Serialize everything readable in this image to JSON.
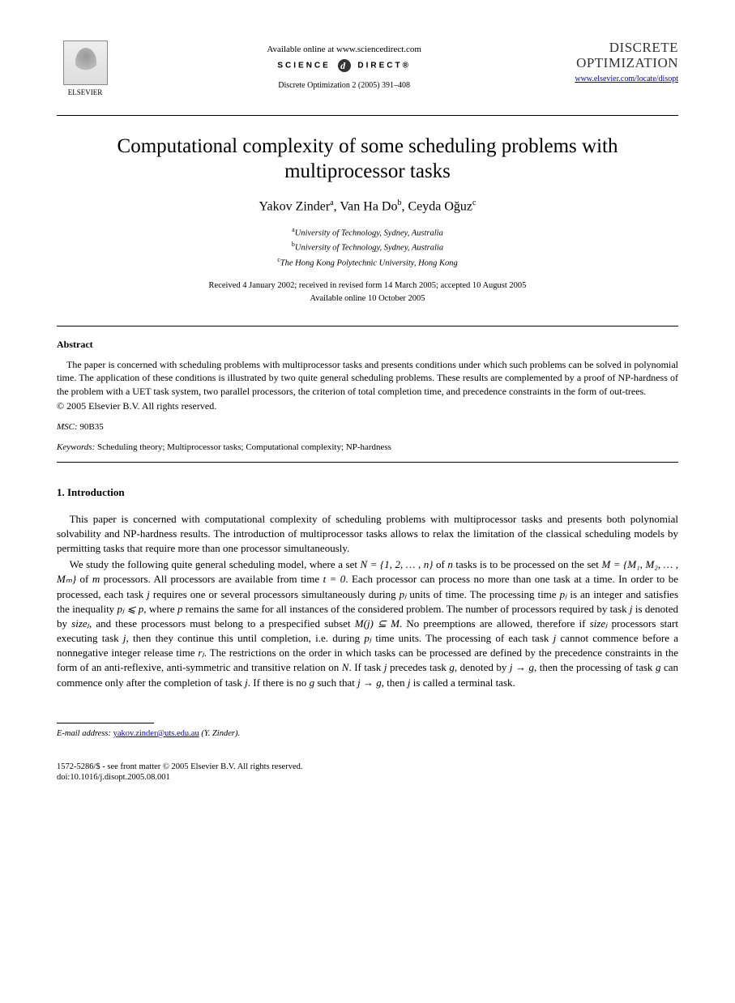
{
  "header": {
    "publisher_name": "ELSEVIER",
    "available_online": "Available online at www.sciencedirect.com",
    "science_direct_left": "SCIENCE",
    "science_direct_right": "DIRECT®",
    "journal_ref": "Discrete Optimization 2 (2005) 391–408",
    "journal_name_line1": "DISCRETE",
    "journal_name_line2": "OPTIMIZATION",
    "journal_link_text": "www.elsevier.com/locate/disopt"
  },
  "title": "Computational complexity of some scheduling problems with multiprocessor tasks",
  "authors": [
    {
      "name": "Yakov Zinder",
      "sup": "a"
    },
    {
      "name": "Van Ha Do",
      "sup": "b"
    },
    {
      "name": "Ceyda Oğuz",
      "sup": "c"
    }
  ],
  "affiliations": [
    {
      "sup": "a",
      "text": "University of Technology, Sydney, Australia"
    },
    {
      "sup": "b",
      "text": "University of Technology, Sydney, Australia"
    },
    {
      "sup": "c",
      "text": "The Hong Kong Polytechnic University, Hong Kong"
    }
  ],
  "dates": {
    "line1": "Received 4 January 2002; received in revised form 14 March 2005; accepted 10 August 2005",
    "line2": "Available online 10 October 2005"
  },
  "abstract": {
    "heading": "Abstract",
    "body": "The paper is concerned with scheduling problems with multiprocessor tasks and presents conditions under which such problems can be solved in polynomial time. The application of these conditions is illustrated by two quite general scheduling problems. These results are complemented by a proof of NP-hardness of the problem with a UET task system, two parallel processors, the criterion of total completion time, and precedence constraints in the form of out-trees.",
    "copyright": "© 2005 Elsevier B.V. All rights reserved."
  },
  "msc": {
    "label": "MSC:",
    "value": "90B35"
  },
  "keywords": {
    "label": "Keywords:",
    "value": "Scheduling theory; Multiprocessor tasks; Computational complexity; NP-hardness"
  },
  "section1": {
    "heading": "1.  Introduction",
    "para1": "This paper is concerned with computational complexity of scheduling problems with multiprocessor tasks and presents both polynomial solvability and NP-hardness results. The introduction of multiprocessor tasks allows to relax the limitation of the classical scheduling models by permitting tasks that require more than one processor simultaneously.",
    "para2_parts": {
      "t1": "We study the following quite general scheduling model, where a set ",
      "m1": "N = {1, 2, … , n}",
      "t2": " of ",
      "m2": "n",
      "t3": " tasks is to be processed on the set ",
      "m3": "M = {M₁, M₂, … , Mₘ}",
      "t4": " of ",
      "m4": "m",
      "t5": " processors. All processors are available from time ",
      "m5": "t = 0",
      "t6": ". Each processor can process no more than one task at a time. In order to be processed, each task ",
      "m6": "j",
      "t7": " requires one or several processors simultaneously during ",
      "m7": "pⱼ",
      "t8": " units of time. The processing time ",
      "m8": "pⱼ",
      "t9": " is an integer and satisfies the inequality ",
      "m9": "pⱼ ⩽ p",
      "t10": ", where ",
      "m10": "p",
      "t11": " remains the same for all instances of the considered problem. The number of processors required by task ",
      "m11": "j",
      "t12": " is denoted by ",
      "m12": "sizeⱼ",
      "t13": ", and these processors must belong to a prespecified subset ",
      "m13": "M(j) ⊆ M",
      "t14": ". No preemptions are allowed, therefore if ",
      "m14": "sizeⱼ",
      "t15": " processors start executing task ",
      "m15": "j",
      "t16": ", then they continue this until completion, i.e. during ",
      "m16": "pⱼ",
      "t17": " time units. The processing of each task ",
      "m17": "j",
      "t18": " cannot commence before a nonnegative integer release time ",
      "m18": "rⱼ",
      "t19": ". The restrictions on the order in which tasks can be processed are defined by the precedence constraints in the form of an anti-reflexive, anti-symmetric and transitive relation on ",
      "m19": "N",
      "t20": ". If task ",
      "m20": "j",
      "t21": " precedes task ",
      "m21": "g",
      "t22": ", denoted by ",
      "m22": "j → g",
      "t23": ", then the processing of task ",
      "m23": "g",
      "t24": " can commence only after the completion of task ",
      "m24": "j",
      "t25": ". If there is no ",
      "m25": "g",
      "t26": " such that ",
      "m26": "j → g",
      "t27": ", then ",
      "m27": "j",
      "t28": " is called a terminal task."
    }
  },
  "footnote": {
    "label": "E-mail address:",
    "email": "yakov.zinder@uts.edu.au",
    "who": "(Y. Zinder)."
  },
  "footer": {
    "line1": "1572-5286/$ - see front matter © 2005 Elsevier B.V. All rights reserved.",
    "line2": "doi:10.1016/j.disopt.2005.08.001"
  },
  "colors": {
    "text": "#000000",
    "link": "#0000cc",
    "background": "#ffffff"
  },
  "typography": {
    "title_fontsize": 25,
    "author_fontsize": 16,
    "body_fontsize": 13,
    "abstract_fontsize": 12,
    "footnote_fontsize": 10.5
  }
}
